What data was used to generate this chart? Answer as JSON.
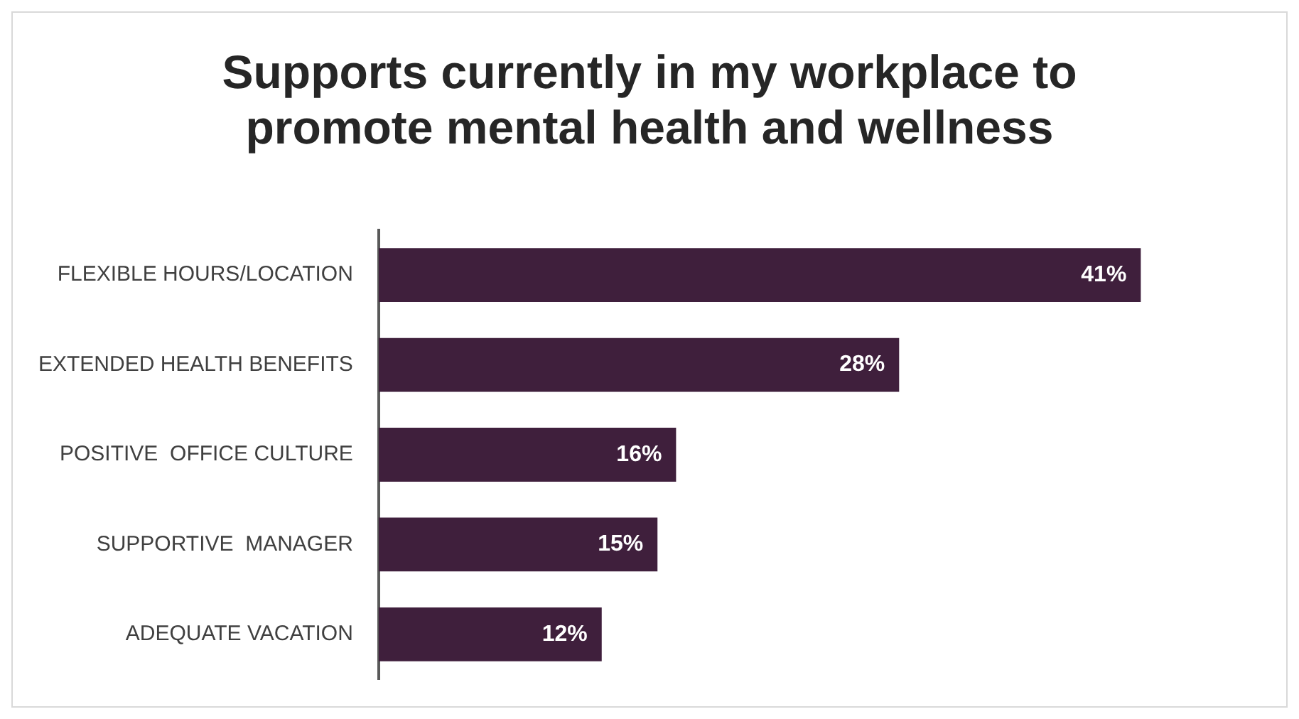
{
  "chart_data": {
    "type": "bar",
    "orientation": "horizontal",
    "title": "Supports currently in my workplace to promote mental health and wellness",
    "categories": [
      "FLEXIBLE HOURS/LOCATION",
      "EXTENDED HEALTH BENEFITS",
      "POSITIVE  OFFICE CULTURE",
      "SUPPORTIVE  MANAGER",
      "ADEQUATE VACATION"
    ],
    "values": [
      41,
      28,
      16,
      15,
      12
    ],
    "value_labels": [
      "41%",
      "28%",
      "16%",
      "15%",
      "12%"
    ],
    "color": "#3f1f3c",
    "grid": false,
    "legend": false
  }
}
